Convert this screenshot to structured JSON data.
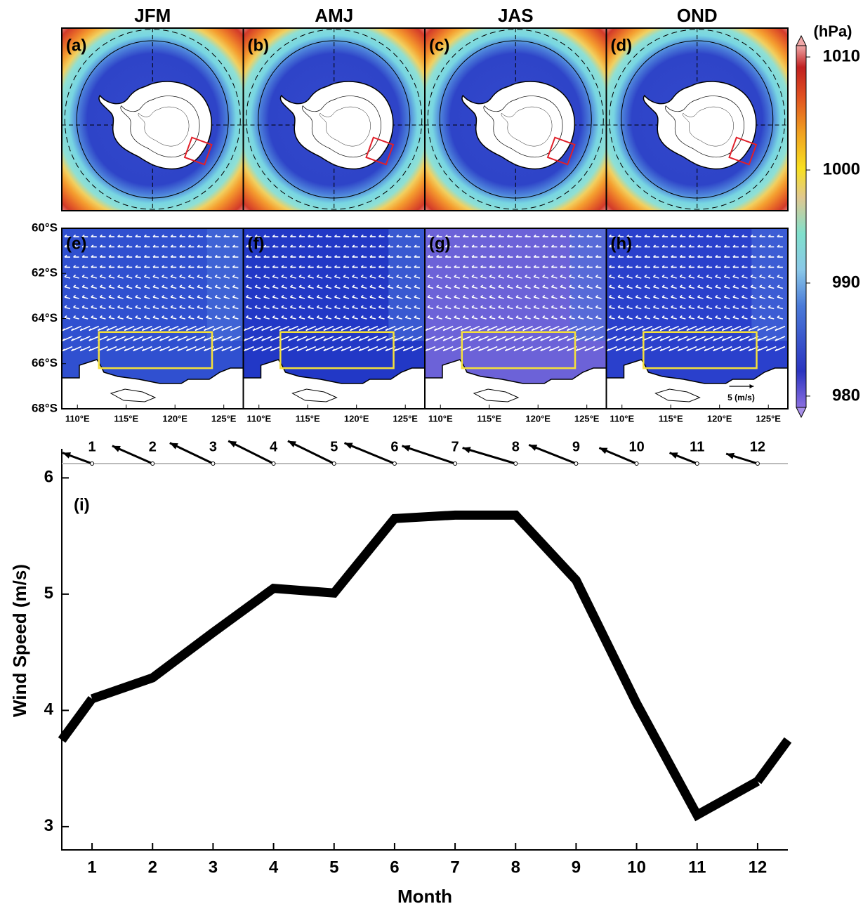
{
  "maps": {
    "seasons": [
      "JFM",
      "AMJ",
      "JAS",
      "OND"
    ],
    "panel_labels": [
      "(a)",
      "(b)",
      "(c)",
      "(d)",
      "(e)",
      "(f)",
      "(g)",
      "(h)"
    ],
    "latlim": [
      -60,
      -68
    ],
    "lat_ticks": [
      {
        "value": -60,
        "label": "60°S"
      },
      {
        "value": -62,
        "label": "62°S"
      },
      {
        "value": -64,
        "label": "64°S"
      },
      {
        "value": -66,
        "label": "66°S"
      },
      {
        "value": -68,
        "label": "68°S"
      }
    ],
    "lonlim": [
      108.4,
      127
    ],
    "lon_ticks": [
      {
        "value": 110,
        "label": "110°E"
      },
      {
        "value": 115,
        "label": "115°E"
      },
      {
        "value": 120,
        "label": "120°E"
      },
      {
        "value": 125,
        "label": "125°E"
      }
    ],
    "reference_vector_label": "5 (m/s)",
    "colorbar": {
      "label": "(hPa)",
      "clim": [
        979,
        1011
      ],
      "ticks": [
        980,
        990,
        1000,
        1010
      ]
    }
  },
  "chart_data": {
    "type": "line",
    "label": "(i)",
    "xlabel": "Month",
    "ylabel": "Wind Speed (m/s)",
    "x": [
      1,
      2,
      3,
      4,
      5,
      6,
      7,
      8,
      9,
      10,
      11,
      12
    ],
    "values": [
      4.1,
      4.28,
      4.67,
      5.05,
      5.01,
      5.65,
      5.68,
      5.68,
      5.12,
      4.06,
      3.1,
      3.39
    ],
    "color": "#000000",
    "xlim": [
      0.5,
      12.5
    ],
    "xticks": [
      1,
      2,
      3,
      4,
      5,
      6,
      7,
      8,
      9,
      10,
      11,
      12
    ],
    "ylim": [
      2.8,
      6.25
    ],
    "yticks": [
      3,
      4,
      5,
      6
    ],
    "arrows": {
      "u": [
        -3.0,
        -4.1,
        -4.4,
        -4.6,
        -4.7,
        -5.1,
        -5.4,
        -5.4,
        -4.8,
        -3.8,
        -2.8,
        -3.2
      ],
      "v": [
        1.1,
        1.8,
        2.1,
        2.3,
        2.3,
        2.1,
        1.8,
        1.6,
        1.9,
        1.6,
        1.1,
        1.0
      ]
    }
  }
}
